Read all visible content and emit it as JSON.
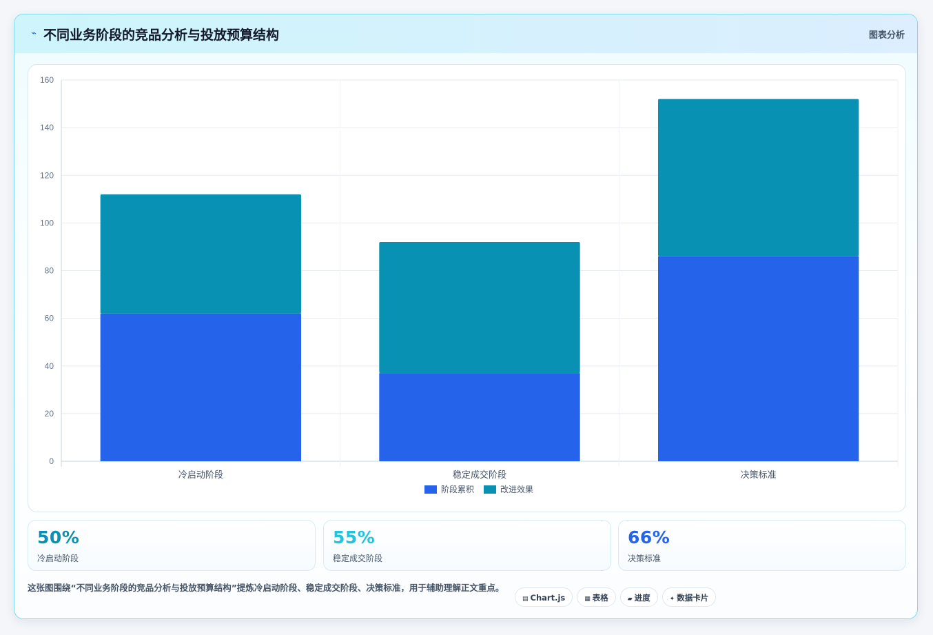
{
  "header": {
    "title": "不同业务阶段的竞品分析与投放预算结构",
    "tag": "图表分析",
    "icon": "chart-lightning-icon"
  },
  "chart_data": {
    "type": "bar",
    "stacked": true,
    "categories": [
      "冷启动阶段",
      "稳定成交阶段",
      "决策标准"
    ],
    "series": [
      {
        "name": "阶段累积",
        "values": [
          62,
          37,
          86
        ],
        "color": "#2563eb"
      },
      {
        "name": "改进效果",
        "values": [
          50,
          55,
          66
        ],
        "color": "#0891b2"
      }
    ],
    "ylim": [
      0,
      160
    ],
    "yticks": [
      0,
      20,
      40,
      60,
      80,
      100,
      120,
      140,
      160
    ],
    "grid": true,
    "legend": "bottom"
  },
  "stats": [
    {
      "value": "50%",
      "label": "冷启动阶段",
      "color": "#0891b2"
    },
    {
      "value": "55%",
      "label": "稳定成交阶段",
      "color": "#22c3dd"
    },
    {
      "value": "66%",
      "label": "决策标准",
      "color": "#2563eb"
    }
  ],
  "footer": {
    "description": "这张图围绕“不同业务阶段的竞品分析与投放预算结构”提炼冷启动阶段、稳定成交阶段、决策标准，用于辅助理解正文重点。",
    "chips": [
      {
        "icon": "▤",
        "label": "Chart.js"
      },
      {
        "icon": "▦",
        "label": "表格"
      },
      {
        "icon": "▰",
        "label": "进度"
      },
      {
        "icon": "✦",
        "label": "数据卡片"
      }
    ]
  }
}
